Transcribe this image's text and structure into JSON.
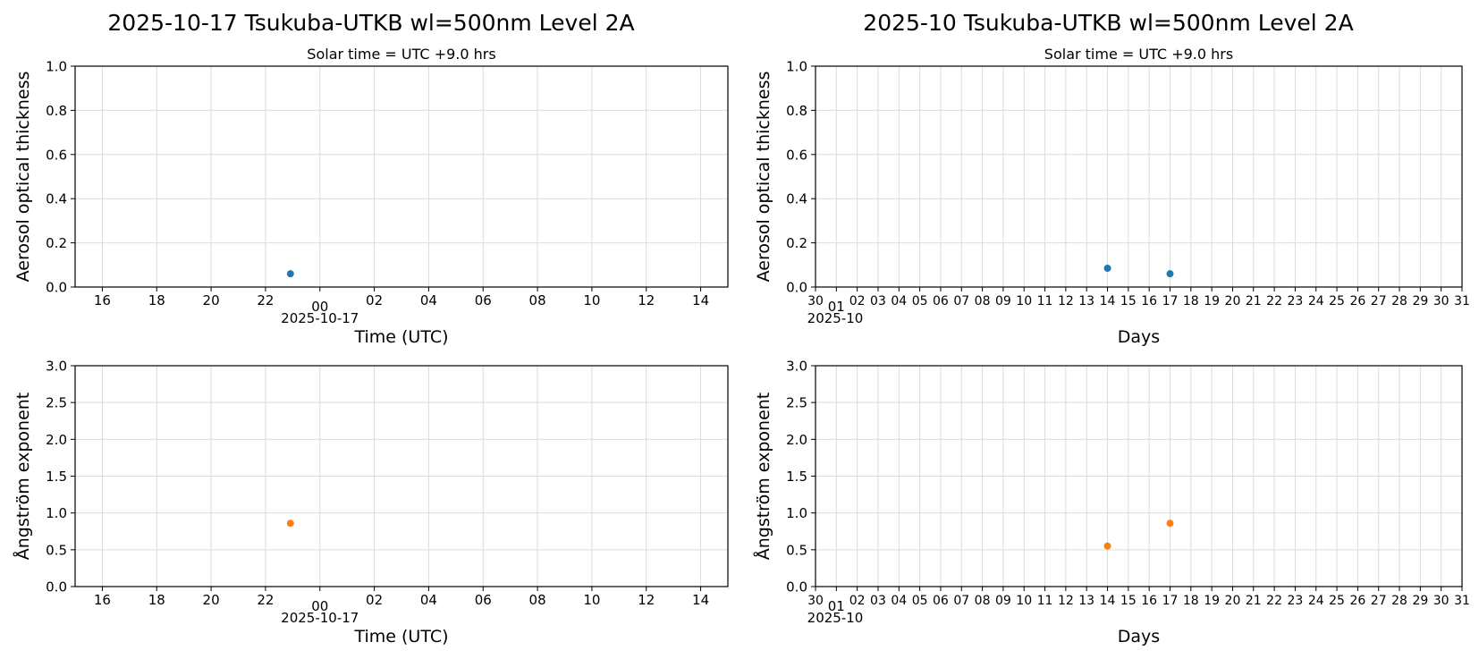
{
  "chart_data": [
    {
      "id": "daily-aot",
      "type": "scatter",
      "title": "2025-10-17  Tsukuba-UTKB  wl=500nm  Level 2A",
      "subtitle": "Solar time = UTC +9.0 hrs",
      "xlabel": "Time (UTC)",
      "ylabel": "Aerosol optical thickness",
      "x_axis": "time-utc",
      "xlim": [
        "2025-10-16T15:00",
        "2025-10-17T15:00"
      ],
      "x_ticks": [
        "16",
        "18",
        "20",
        "22",
        "00",
        "02",
        "04",
        "06",
        "08",
        "10",
        "12",
        "14"
      ],
      "x_secondary_label": "2025-10-17",
      "ylim": [
        0,
        1.0
      ],
      "y_ticks": [
        "0.0",
        "0.2",
        "0.4",
        "0.6",
        "0.8",
        "1.0"
      ],
      "grid": true,
      "series": [
        {
          "color": "#1f77b4",
          "points": [
            {
              "x": "2025-10-16T22:55",
              "y": 0.06
            }
          ]
        }
      ]
    },
    {
      "id": "monthly-aot",
      "type": "scatter",
      "title": "2025-10  Tsukuba-UTKB  wl=500nm  Level 2A",
      "subtitle": "Solar time = UTC +9.0 hrs",
      "xlabel": "Days",
      "ylabel": "Aerosol optical thickness",
      "x_axis": "days",
      "xlim": [
        "2025-09-30",
        "2025-10-31"
      ],
      "x_ticks": [
        "30",
        "01",
        "02",
        "03",
        "04",
        "05",
        "06",
        "07",
        "08",
        "09",
        "10",
        "11",
        "12",
        "13",
        "14",
        "15",
        "16",
        "17",
        "18",
        "19",
        "20",
        "21",
        "22",
        "23",
        "24",
        "25",
        "26",
        "27",
        "28",
        "29",
        "30",
        "31"
      ],
      "x_secondary_label": "2025-10",
      "ylim": [
        0,
        1.0
      ],
      "y_ticks": [
        "0.0",
        "0.2",
        "0.4",
        "0.6",
        "0.8",
        "1.0"
      ],
      "grid": true,
      "series": [
        {
          "color": "#1f77b4",
          "points": [
            {
              "x": "2025-10-14",
              "y": 0.085
            },
            {
              "x": "2025-10-17",
              "y": 0.06
            }
          ]
        }
      ]
    },
    {
      "id": "daily-angstrom",
      "type": "scatter",
      "xlabel": "Time (UTC)",
      "ylabel": "Ångström exponent",
      "x_axis": "time-utc",
      "xlim": [
        "2025-10-16T15:00",
        "2025-10-17T15:00"
      ],
      "x_ticks": [
        "16",
        "18",
        "20",
        "22",
        "00",
        "02",
        "04",
        "06",
        "08",
        "10",
        "12",
        "14"
      ],
      "x_secondary_label": "2025-10-17",
      "ylim": [
        0,
        3.0
      ],
      "y_ticks": [
        "0.0",
        "0.5",
        "1.0",
        "1.5",
        "2.0",
        "2.5",
        "3.0"
      ],
      "grid": true,
      "series": [
        {
          "color": "#ff7f0e",
          "points": [
            {
              "x": "2025-10-16T22:55",
              "y": 0.86
            }
          ]
        }
      ]
    },
    {
      "id": "monthly-angstrom",
      "type": "scatter",
      "xlabel": "Days",
      "ylabel": "Ångström exponent",
      "x_axis": "days",
      "xlim": [
        "2025-09-30",
        "2025-10-31"
      ],
      "x_ticks": [
        "30",
        "01",
        "02",
        "03",
        "04",
        "05",
        "06",
        "07",
        "08",
        "09",
        "10",
        "11",
        "12",
        "13",
        "14",
        "15",
        "16",
        "17",
        "18",
        "19",
        "20",
        "21",
        "22",
        "23",
        "24",
        "25",
        "26",
        "27",
        "28",
        "29",
        "30",
        "31"
      ],
      "x_secondary_label": "2025-10",
      "ylim": [
        0,
        3.0
      ],
      "y_ticks": [
        "0.0",
        "0.5",
        "1.0",
        "1.5",
        "2.0",
        "2.5",
        "3.0"
      ],
      "grid": true,
      "series": [
        {
          "color": "#ff7f0e",
          "points": [
            {
              "x": "2025-10-14",
              "y": 0.55
            },
            {
              "x": "2025-10-17",
              "y": 0.86
            }
          ]
        }
      ]
    }
  ]
}
